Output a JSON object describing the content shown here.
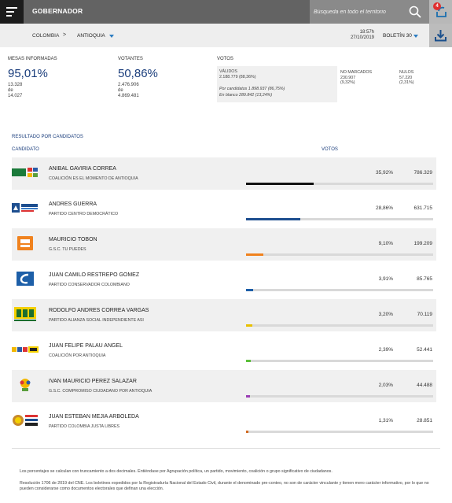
{
  "header": {
    "title": "GOBERNADOR",
    "search_placeholder": "Búsqueda en todo el territorio",
    "notification_count": "4"
  },
  "breadcrumb": {
    "country": "COLOMBIA",
    "separator": ">",
    "department": "ANTIOQUIA"
  },
  "bulletin": {
    "time": "18:57h",
    "date": "27/10/2019",
    "label": "BOLETÍN 30"
  },
  "stats": {
    "mesas": {
      "label": "MESAS INFORMADAS",
      "pct": "95,01%",
      "count": "13.328",
      "of_word": "de",
      "total": "14.027"
    },
    "votantes": {
      "label": "VOTANTES",
      "pct": "50,86%",
      "count": "2.476.906",
      "of_word": "de",
      "total": "4.869.481"
    },
    "votos": {
      "label": "VOTOS",
      "validos_label": "VÁLIDOS",
      "validos_value": "2.188.779 (88,36%)",
      "por_candidatos": "Por candidatos  1.898.937 (86,75%)",
      "en_blanco": "En blanco  289.842 (13,24%)",
      "no_marcados_label": "NO MARCADOS",
      "no_marcados_value": "230.907",
      "no_marcados_pct": "(9,32%)",
      "nulos_label": "NULOS",
      "nulos_value": "57.220",
      "nulos_pct": "(2,31%)"
    }
  },
  "results": {
    "title": "RESULTADO POR CANDIDATOS",
    "col_candidate": "CANDIDATO",
    "col_votes": "VOTOS",
    "candidates": [
      {
        "name": "ANIBAL GAVIRIA CORREA",
        "party": "COALICIÓN ES EL MOMENTO DE ANTIOQUIA",
        "pct": "35,92%",
        "votes": "786.329",
        "share": 35.92,
        "color": "#111111",
        "logo": "coalicion-logo"
      },
      {
        "name": "ANDRES GUERRA",
        "party": "PARTIDO CENTRO DEMOCRÁTICO",
        "pct": "28,86%",
        "votes": "631.715",
        "share": 28.86,
        "color": "#1d4e8f",
        "logo": "centro-democratico-logo"
      },
      {
        "name": "MAURICIO TOBON",
        "party": "G.S.C. TU PUEDES",
        "pct": "9,10%",
        "votes": "199.209",
        "share": 9.1,
        "color": "#f0821e",
        "logo": "tu-puedes-logo"
      },
      {
        "name": "JUAN CAMILO RESTREPO GOMEZ",
        "party": "PARTIDO CONSERVADOR COLOMBIANO",
        "pct": "3,91%",
        "votes": "85.765",
        "share": 3.91,
        "color": "#1d5fa8",
        "logo": "conservador-logo"
      },
      {
        "name": "RODOLFO ANDRES CORREA VARGAS",
        "party": "PARTIDO ALIANZA SOCIAL INDEPENDIENTE ASI",
        "pct": "3,20%",
        "votes": "70.119",
        "share": 3.2,
        "color": "#e8c000",
        "logo": "asi-logo"
      },
      {
        "name": "JUAN FELIPE PALAU ANGEL",
        "party": "COALICIÓN POR ANTIOQUIA",
        "pct": "2,39%",
        "votes": "52.441",
        "share": 2.39,
        "color": "#5bbf3a",
        "logo": "polo-logo"
      },
      {
        "name": "IVAN MAURICIO PEREZ SALAZAR",
        "party": "G.S.C. COMPROMISO CIUDADANO POR ANTIOQUIA",
        "pct": "2,03%",
        "votes": "44.488",
        "share": 2.03,
        "color": "#9b3fb5",
        "logo": "compromiso-logo"
      },
      {
        "name": "JUAN ESTEBAN MEJIA ARBOLEDA",
        "party": "PARTIDO COLOMBIA JUSTA LIBRES",
        "pct": "1,31%",
        "votes": "28.851",
        "share": 1.31,
        "color": "#d2691e",
        "logo": "colombia-justa-logo"
      }
    ]
  },
  "footer": {
    "note1": "Los porcentajes se calculan con truncamiento a dos decimales. Entiéndase por Agrupación política, un partido, movimiento, coalición o grupo significativo de ciudadanos.",
    "note2": "Resolución 1706 de 2019 del CNE. Los boletines expedidos por la Registraduría Nacional del Estado Civil, durante el denominado pre-conteo, no son de carácter vinculante y tienen mero carácter informativo, por lo que no pueden considerarse como documentos electorales que definan una elección."
  }
}
